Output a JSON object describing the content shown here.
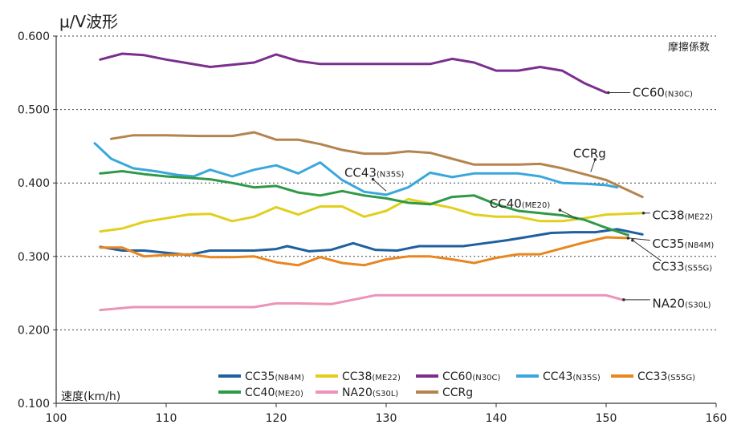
{
  "chart_data": {
    "type": "line",
    "title": "μ/V波形",
    "xlabel": "速度(km/h)",
    "ylabel": "摩擦係数",
    "xlim": [
      100,
      160
    ],
    "ylim": [
      0.1,
      0.6
    ],
    "x_ticks": [
      "100",
      "110",
      "120",
      "130",
      "140",
      "150",
      "160"
    ],
    "y_ticks": [
      "0.100",
      "0.200",
      "0.300",
      "0.400",
      "0.500",
      "0.600"
    ],
    "grid": "horizontal-dotted",
    "legend_position": "bottom-right",
    "series": [
      {
        "id": "cc35",
        "name": "CC35",
        "sub": "(N84M)",
        "color": "#1f5f9e",
        "x": [
          104,
          106,
          108,
          110,
          112,
          114,
          116,
          118,
          120,
          121,
          123,
          125,
          127,
          129,
          131,
          133,
          135,
          137,
          139,
          141,
          143,
          145,
          147,
          149,
          151,
          153.3
        ],
        "y": [
          0.313,
          0.308,
          0.308,
          0.305,
          0.302,
          0.308,
          0.308,
          0.308,
          0.31,
          0.314,
          0.307,
          0.309,
          0.318,
          0.309,
          0.308,
          0.314,
          0.314,
          0.314,
          0.318,
          0.322,
          0.327,
          0.332,
          0.333,
          0.333,
          0.337,
          0.33
        ]
      },
      {
        "id": "cc38",
        "name": "CC38",
        "sub": "(ME22)",
        "color": "#e2cf1c",
        "x": [
          104,
          106,
          108,
          110,
          112,
          114,
          116,
          118,
          120,
          122,
          124,
          126,
          128,
          130,
          132,
          134,
          136,
          138,
          140,
          142,
          144,
          146,
          148,
          150,
          153.3
        ],
        "y": [
          0.334,
          0.338,
          0.347,
          0.352,
          0.357,
          0.358,
          0.348,
          0.354,
          0.367,
          0.357,
          0.368,
          0.368,
          0.354,
          0.362,
          0.378,
          0.372,
          0.366,
          0.357,
          0.354,
          0.354,
          0.348,
          0.348,
          0.352,
          0.357,
          0.359
        ]
      },
      {
        "id": "cc60",
        "name": "CC60",
        "sub": "(N30C)",
        "color": "#7b2e8e",
        "x": [
          104,
          106,
          108,
          110,
          112,
          114,
          116,
          118,
          120,
          122,
          124,
          126,
          128,
          130,
          132,
          134,
          136,
          138,
          140,
          142,
          144,
          146,
          148,
          150
        ],
        "y": [
          0.568,
          0.576,
          0.574,
          0.568,
          0.563,
          0.558,
          0.561,
          0.564,
          0.575,
          0.566,
          0.562,
          0.562,
          0.562,
          0.562,
          0.562,
          0.562,
          0.569,
          0.564,
          0.553,
          0.553,
          0.558,
          0.553,
          0.536,
          0.523
        ]
      },
      {
        "id": "cc43",
        "name": "CC43",
        "sub": "(N35S)",
        "color": "#3aa7dc",
        "x": [
          103.5,
          105,
          107,
          109,
          111,
          112.5,
          114,
          116,
          118,
          120,
          122,
          124,
          126,
          128,
          130,
          132,
          134,
          136,
          138,
          140,
          142,
          144,
          146,
          148,
          150,
          151
        ],
        "y": [
          0.454,
          0.433,
          0.42,
          0.416,
          0.411,
          0.409,
          0.418,
          0.409,
          0.418,
          0.424,
          0.413,
          0.428,
          0.404,
          0.388,
          0.384,
          0.394,
          0.414,
          0.408,
          0.413,
          0.413,
          0.413,
          0.409,
          0.4,
          0.399,
          0.397,
          0.394
        ]
      },
      {
        "id": "cc33",
        "name": "CC33",
        "sub": "(S55G)",
        "color": "#e8861f",
        "x": [
          104,
          106,
          108,
          110,
          112,
          114,
          116,
          118,
          120,
          122,
          124,
          126,
          128,
          130,
          132,
          134,
          136,
          138,
          140,
          142,
          144,
          146,
          148,
          150,
          152
        ],
        "y": [
          0.312,
          0.312,
          0.3,
          0.302,
          0.303,
          0.299,
          0.299,
          0.3,
          0.292,
          0.288,
          0.299,
          0.291,
          0.288,
          0.296,
          0.3,
          0.3,
          0.296,
          0.291,
          0.298,
          0.303,
          0.303,
          0.311,
          0.319,
          0.326,
          0.325
        ]
      },
      {
        "id": "cc40",
        "name": "CC40",
        "sub": "(ME20)",
        "color": "#2e9a45",
        "x": [
          104,
          106,
          108,
          110,
          112,
          114,
          116,
          118,
          120,
          122,
          124,
          126,
          128,
          130,
          132,
          134,
          136,
          138,
          140,
          142,
          144,
          146,
          148,
          150,
          152
        ],
        "y": [
          0.413,
          0.416,
          0.412,
          0.409,
          0.407,
          0.405,
          0.4,
          0.394,
          0.396,
          0.387,
          0.383,
          0.389,
          0.383,
          0.379,
          0.373,
          0.371,
          0.381,
          0.383,
          0.371,
          0.362,
          0.359,
          0.356,
          0.35,
          0.339,
          0.329
        ]
      },
      {
        "id": "na20",
        "name": "NA20",
        "sub": "(S30L)",
        "color": "#ec93b8",
        "x": [
          104,
          107,
          110,
          113,
          115,
          118,
          120,
          122,
          125,
          127,
          129,
          132,
          135,
          138,
          141,
          144,
          147,
          150,
          151.5
        ],
        "y": [
          0.227,
          0.231,
          0.231,
          0.231,
          0.231,
          0.231,
          0.236,
          0.236,
          0.235,
          0.241,
          0.247,
          0.247,
          0.247,
          0.247,
          0.247,
          0.247,
          0.247,
          0.247,
          0.241
        ]
      },
      {
        "id": "ccrg",
        "name": "CCRg",
        "sub": "",
        "color": "#b5844e",
        "x": [
          105,
          107,
          110,
          113,
          116,
          118,
          120,
          122,
          124,
          126,
          128,
          130,
          132,
          134,
          136,
          138,
          140,
          142,
          144,
          146,
          148,
          150,
          152,
          153.3
        ],
        "y": [
          0.46,
          0.465,
          0.465,
          0.464,
          0.464,
          0.469,
          0.459,
          0.459,
          0.453,
          0.445,
          0.44,
          0.44,
          0.443,
          0.441,
          0.433,
          0.425,
          0.425,
          0.425,
          0.426,
          0.42,
          0.412,
          0.404,
          0.39,
          0.381
        ]
      }
    ],
    "end_labels": [
      {
        "series": "cc60",
        "name": "CC60",
        "sub": "(N30C)",
        "tx": 152.4,
        "ty": 0.523,
        "lx1": 150.2,
        "ly1": 0.523,
        "lx2": 152.2,
        "ly2": 0.523
      },
      {
        "series": "ccrg",
        "name": "CCRg",
        "sub": "",
        "tx": 147,
        "ty": 0.44,
        "lx1": 149.0,
        "ly1": 0.432,
        "lx2": 148.6,
        "ly2": 0.415
      },
      {
        "series": "cc43",
        "name": "CC43",
        "sub": "(N35S)",
        "tx": 126.2,
        "ty": 0.414,
        "lx1": 128.8,
        "ly1": 0.405,
        "lx2": 130.0,
        "ly2": 0.389
      },
      {
        "series": "cc40",
        "name": "CC40",
        "sub": "(ME20)",
        "tx": 139.4,
        "ty": 0.372,
        "lx1": 145.8,
        "ly1": 0.363,
        "lx2": 147.4,
        "ly2": 0.351
      },
      {
        "series": "cc38",
        "name": "CC38",
        "sub": "(ME22)",
        "tx": 154.2,
        "ty": 0.356,
        "lx1": 153.4,
        "ly1": 0.359,
        "lx2": 154.0,
        "ly2": 0.359
      },
      {
        "series": "cc35",
        "name": "CC35",
        "sub": "(N84M)",
        "tx": 154.2,
        "ty": 0.317,
        "lx1": 152.0,
        "ly1": 0.325,
        "lx2": 154.0,
        "ly2": 0.322
      },
      {
        "series": "cc33",
        "name": "CC33",
        "sub": "(S55G)",
        "tx": 154.2,
        "ty": 0.286,
        "lx1": 152.4,
        "ly1": 0.322,
        "lx2": 155.0,
        "ly2": 0.294
      },
      {
        "series": "na20",
        "name": "NA20",
        "sub": "(S30L)",
        "tx": 154.2,
        "ty": 0.236,
        "lx1": 151.6,
        "ly1": 0.241,
        "lx2": 154.0,
        "ly2": 0.241
      }
    ],
    "legend_rows": [
      [
        "cc35",
        "cc38",
        "cc60",
        "cc43",
        "cc33"
      ],
      [
        "cc40",
        "na20",
        "ccrg"
      ]
    ]
  }
}
